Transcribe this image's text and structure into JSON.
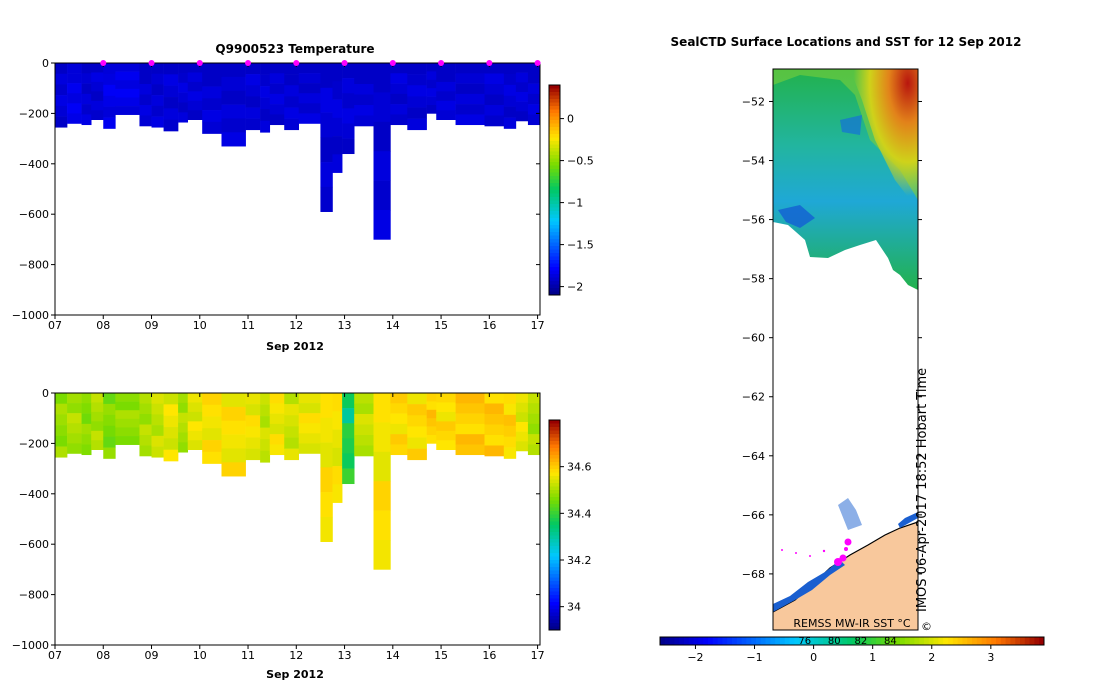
{
  "chart_data": [
    {
      "type": "heatmap",
      "title": "Q9900523  Temperature",
      "xlabel": "Sep 2012",
      "ylabel": "",
      "x_tick_labels": [
        "07",
        "08",
        "09",
        "10",
        "11",
        "12",
        "13",
        "14",
        "15",
        "16",
        "17"
      ],
      "y_tick_values": [
        0,
        -200,
        -400,
        -600,
        -800,
        -1000
      ],
      "ylim": [
        -1000,
        0
      ],
      "xlim": [
        7,
        17.05
      ],
      "colorbar": {
        "ticks": [
          0,
          -0.5,
          -1,
          -1.5,
          -2
        ],
        "range": [
          -2.1,
          0.4
        ]
      },
      "profile_dates": [
        8.0,
        9.0,
        10.0,
        11.0,
        12.0,
        13.0,
        14.0,
        15.0,
        16.0,
        17.0
      ],
      "profile_marker_color": "#ff00ff",
      "profiles": [
        {
          "x0": 7.0,
          "x1": 7.25,
          "depth": -255,
          "v": -1.95
        },
        {
          "x0": 7.25,
          "x1": 7.55,
          "depth": -240,
          "v": -1.9
        },
        {
          "x0": 7.55,
          "x1": 7.75,
          "depth": -245,
          "v": -1.95
        },
        {
          "x0": 7.75,
          "x1": 8.0,
          "depth": -225,
          "v": -1.95
        },
        {
          "x0": 8.0,
          "x1": 8.25,
          "depth": -260,
          "v": -1.9
        },
        {
          "x0": 8.25,
          "x1": 8.75,
          "depth": -205,
          "v": -1.9
        },
        {
          "x0": 8.75,
          "x1": 9.0,
          "depth": -250,
          "v": -1.95
        },
        {
          "x0": 9.0,
          "x1": 9.25,
          "depth": -255,
          "v": -1.95
        },
        {
          "x0": 9.25,
          "x1": 9.55,
          "depth": -270,
          "v": -1.95
        },
        {
          "x0": 9.55,
          "x1": 9.75,
          "depth": -235,
          "v": -1.95
        },
        {
          "x0": 9.75,
          "x1": 10.05,
          "depth": -225,
          "v": -1.95
        },
        {
          "x0": 10.05,
          "x1": 10.45,
          "depth": -280,
          "v": -1.95
        },
        {
          "x0": 10.45,
          "x1": 10.95,
          "depth": -330,
          "v": -1.95
        },
        {
          "x0": 10.95,
          "x1": 11.25,
          "depth": -265,
          "v": -1.95
        },
        {
          "x0": 11.25,
          "x1": 11.45,
          "depth": -275,
          "v": -1.95
        },
        {
          "x0": 11.45,
          "x1": 11.75,
          "depth": -245,
          "v": -1.95
        },
        {
          "x0": 11.75,
          "x1": 12.05,
          "depth": -265,
          "v": -1.95
        },
        {
          "x0": 12.05,
          "x1": 12.5,
          "depth": -240,
          "v": -1.95
        },
        {
          "x0": 12.5,
          "x1": 12.75,
          "depth": -590,
          "v": -1.95
        },
        {
          "x0": 12.75,
          "x1": 12.95,
          "depth": -435,
          "v": -1.95
        },
        {
          "x0": 12.95,
          "x1": 13.2,
          "depth": -360,
          "v": -1.95
        },
        {
          "x0": 13.2,
          "x1": 13.6,
          "depth": -250,
          "v": -1.95
        },
        {
          "x0": 13.6,
          "x1": 13.95,
          "depth": -700,
          "v": -1.95
        },
        {
          "x0": 13.95,
          "x1": 14.3,
          "depth": -245,
          "v": -1.95
        },
        {
          "x0": 14.3,
          "x1": 14.7,
          "depth": -265,
          "v": -1.95
        },
        {
          "x0": 14.7,
          "x1": 14.9,
          "depth": -200,
          "v": -1.95
        },
        {
          "x0": 14.9,
          "x1": 15.3,
          "depth": -225,
          "v": -1.95
        },
        {
          "x0": 15.3,
          "x1": 15.9,
          "depth": -245,
          "v": -1.95
        },
        {
          "x0": 15.9,
          "x1": 16.3,
          "depth": -250,
          "v": -1.95
        },
        {
          "x0": 16.3,
          "x1": 16.55,
          "depth": -260,
          "v": -1.95
        },
        {
          "x0": 16.55,
          "x1": 16.8,
          "depth": -230,
          "v": -1.95
        },
        {
          "x0": 16.8,
          "x1": 17.05,
          "depth": -245,
          "v": -1.95
        }
      ]
    },
    {
      "type": "heatmap",
      "title": "",
      "xlabel": "Sep 2012",
      "ylabel": "",
      "x_tick_labels": [
        "07",
        "08",
        "09",
        "10",
        "11",
        "12",
        "13",
        "14",
        "15",
        "16",
        "17"
      ],
      "y_tick_values": [
        0,
        -200,
        -400,
        -600,
        -800,
        -1000
      ],
      "ylim": [
        -1000,
        0
      ],
      "xlim": [
        7,
        17.05
      ],
      "colorbar": {
        "ticks": [
          34.6,
          34.4,
          34.2,
          34
        ],
        "range": [
          33.9,
          34.8
        ]
      },
      "profiles": [
        {
          "x0": 7.0,
          "x1": 7.25,
          "depth": -255,
          "v": 34.48
        },
        {
          "x0": 7.25,
          "x1": 7.55,
          "depth": -240,
          "v": 34.5
        },
        {
          "x0": 7.55,
          "x1": 7.75,
          "depth": -245,
          "v": 34.47
        },
        {
          "x0": 7.75,
          "x1": 8.0,
          "depth": -225,
          "v": 34.5
        },
        {
          "x0": 8.0,
          "x1": 8.25,
          "depth": -260,
          "v": 34.46
        },
        {
          "x0": 8.25,
          "x1": 8.75,
          "depth": -205,
          "v": 34.48
        },
        {
          "x0": 8.75,
          "x1": 9.0,
          "depth": -250,
          "v": 34.5
        },
        {
          "x0": 9.0,
          "x1": 9.25,
          "depth": -255,
          "v": 34.52
        },
        {
          "x0": 9.25,
          "x1": 9.55,
          "depth": -270,
          "v": 34.55
        },
        {
          "x0": 9.55,
          "x1": 9.75,
          "depth": -235,
          "v": 34.5
        },
        {
          "x0": 9.75,
          "x1": 10.05,
          "depth": -225,
          "v": 34.55
        },
        {
          "x0": 10.05,
          "x1": 10.45,
          "depth": -280,
          "v": 34.57
        },
        {
          "x0": 10.45,
          "x1": 10.95,
          "depth": -330,
          "v": 34.57
        },
        {
          "x0": 10.95,
          "x1": 11.25,
          "depth": -265,
          "v": 34.56
        },
        {
          "x0": 11.25,
          "x1": 11.45,
          "depth": -275,
          "v": 34.52
        },
        {
          "x0": 11.45,
          "x1": 11.75,
          "depth": -245,
          "v": 34.56
        },
        {
          "x0": 11.75,
          "x1": 12.05,
          "depth": -265,
          "v": 34.53
        },
        {
          "x0": 12.05,
          "x1": 12.5,
          "depth": -240,
          "v": 34.56
        },
        {
          "x0": 12.5,
          "x1": 12.75,
          "depth": -590,
          "v": 34.57
        },
        {
          "x0": 12.75,
          "x1": 12.95,
          "depth": -435,
          "v": 34.56
        },
        {
          "x0": 12.95,
          "x1": 13.2,
          "depth": -360,
          "v": 34.38
        },
        {
          "x0": 13.2,
          "x1": 13.6,
          "depth": -250,
          "v": 34.52
        },
        {
          "x0": 13.6,
          "x1": 13.95,
          "depth": -700,
          "v": 34.57
        },
        {
          "x0": 13.95,
          "x1": 14.3,
          "depth": -245,
          "v": 34.58
        },
        {
          "x0": 14.3,
          "x1": 14.7,
          "depth": -265,
          "v": 34.58
        },
        {
          "x0": 14.7,
          "x1": 14.9,
          "depth": -200,
          "v": 34.6
        },
        {
          "x0": 14.9,
          "x1": 15.3,
          "depth": -225,
          "v": 34.58
        },
        {
          "x0": 15.3,
          "x1": 15.9,
          "depth": -245,
          "v": 34.6
        },
        {
          "x0": 15.9,
          "x1": 16.3,
          "depth": -250,
          "v": 34.6
        },
        {
          "x0": 16.3,
          "x1": 16.55,
          "depth": -260,
          "v": 34.59
        },
        {
          "x0": 16.55,
          "x1": 16.8,
          "depth": -230,
          "v": 34.55
        },
        {
          "x0": 16.8,
          "x1": 17.05,
          "depth": -245,
          "v": 34.5
        }
      ]
    },
    {
      "type": "map",
      "title": "SealCTD Surface Locations and SST for 12 Sep 2012",
      "y_tick_labels": [
        "-52",
        "-54",
        "-56",
        "-58",
        "-60",
        "-62",
        "-64",
        "-66",
        "-68"
      ],
      "ylim": [
        -69.9,
        -50.9
      ],
      "colorbar": {
        "ticks": [
          "-2",
          "-1",
          "0",
          "1",
          "2",
          "3"
        ],
        "tick_values": [
          -2,
          -1,
          0,
          1,
          2,
          3
        ],
        "range": [
          -2.6,
          3.9
        ],
        "inner_labels": [
          "76",
          "80",
          "82",
          "84"
        ]
      },
      "caption": "REMSS MW-IR SST °C",
      "credit": "IMOS 06-Apr-2017 18:52 Hobart Time",
      "copyright": "©",
      "land_color": "#f8c89c",
      "track_color": "#ff00ff"
    }
  ]
}
